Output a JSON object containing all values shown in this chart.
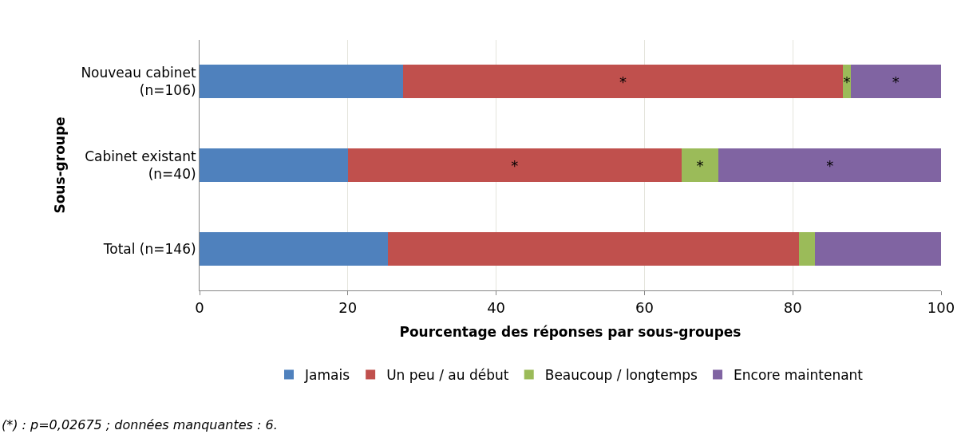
{
  "chart_data": {
    "type": "bar",
    "orientation": "horizontal",
    "stacked": true,
    "categories": [
      "Nouveau cabinet\n(n=106)",
      "Cabinet existant\n(n=40)",
      "Total (n=146)"
    ],
    "series": [
      {
        "name": "Jamais",
        "color": "#4f81bd",
        "values": [
          27.4,
          20.0,
          25.4
        ]
      },
      {
        "name": "Un peu / au début",
        "color": "#c0504d",
        "values": [
          59.4,
          45.0,
          55.4
        ],
        "value_labels": [
          "*",
          "*",
          null
        ]
      },
      {
        "name": "Beaucoup / longtemps",
        "color": "#9bbb59",
        "values": [
          1.0,
          5.0,
          2.2
        ],
        "value_labels": [
          "*",
          "*",
          null
        ]
      },
      {
        "name": "Encore maintenant",
        "color": "#8064a2",
        "values": [
          12.2,
          30.0,
          17.0
        ],
        "value_labels": [
          "*",
          "*",
          null
        ]
      }
    ],
    "xlim": [
      0,
      100
    ],
    "xticks": [
      0,
      20,
      40,
      60,
      80,
      100
    ],
    "xlabel": "Pourcentage des réponses par sous-groupes",
    "ylabel": "Sous-groupe",
    "grid": "x",
    "legend": "bottom",
    "annotations": [
      "(*) : p=0,02675 ; données manquantes : 6."
    ]
  }
}
